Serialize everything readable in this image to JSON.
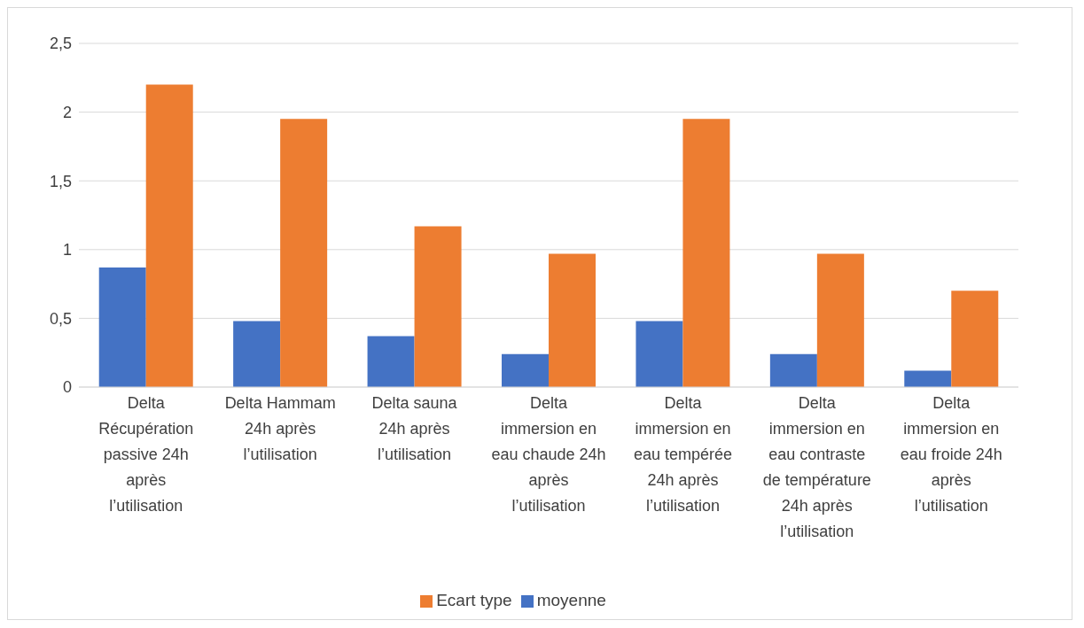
{
  "chart_data": {
    "type": "bar",
    "categories": [
      "Delta Récupération passive 24h après l’utilisation",
      "Delta Hammam 24h après l’utilisation",
      "Delta sauna 24h après l’utilisation",
      "Delta immersion en eau chaude 24h après l’utilisation",
      "Delta immersion en eau tempérée 24h après l’utilisation",
      "Delta immersion en eau contraste de température 24h après l’utilisation",
      "Delta immersion en eau froide 24h après l’utilisation"
    ],
    "series": [
      {
        "name": "moyenne",
        "color": "#4472c4",
        "values": [
          0.87,
          0.48,
          0.37,
          0.24,
          0.48,
          0.24,
          0.12
        ]
      },
      {
        "name": "Ecart type",
        "color": "#ed7d31",
        "values": [
          2.2,
          1.95,
          1.17,
          0.97,
          1.95,
          0.97,
          0.7
        ]
      }
    ],
    "ylim": [
      0,
      2.5
    ],
    "yticks": [
      {
        "value": 0,
        "label": "0"
      },
      {
        "value": 0.5,
        "label": "0,5"
      },
      {
        "value": 1,
        "label": "1"
      },
      {
        "value": 1.5,
        "label": "1,5"
      },
      {
        "value": 2,
        "label": "2"
      },
      {
        "value": 2.5,
        "label": "2,5"
      }
    ],
    "grid": "y",
    "legend": "bottom"
  }
}
